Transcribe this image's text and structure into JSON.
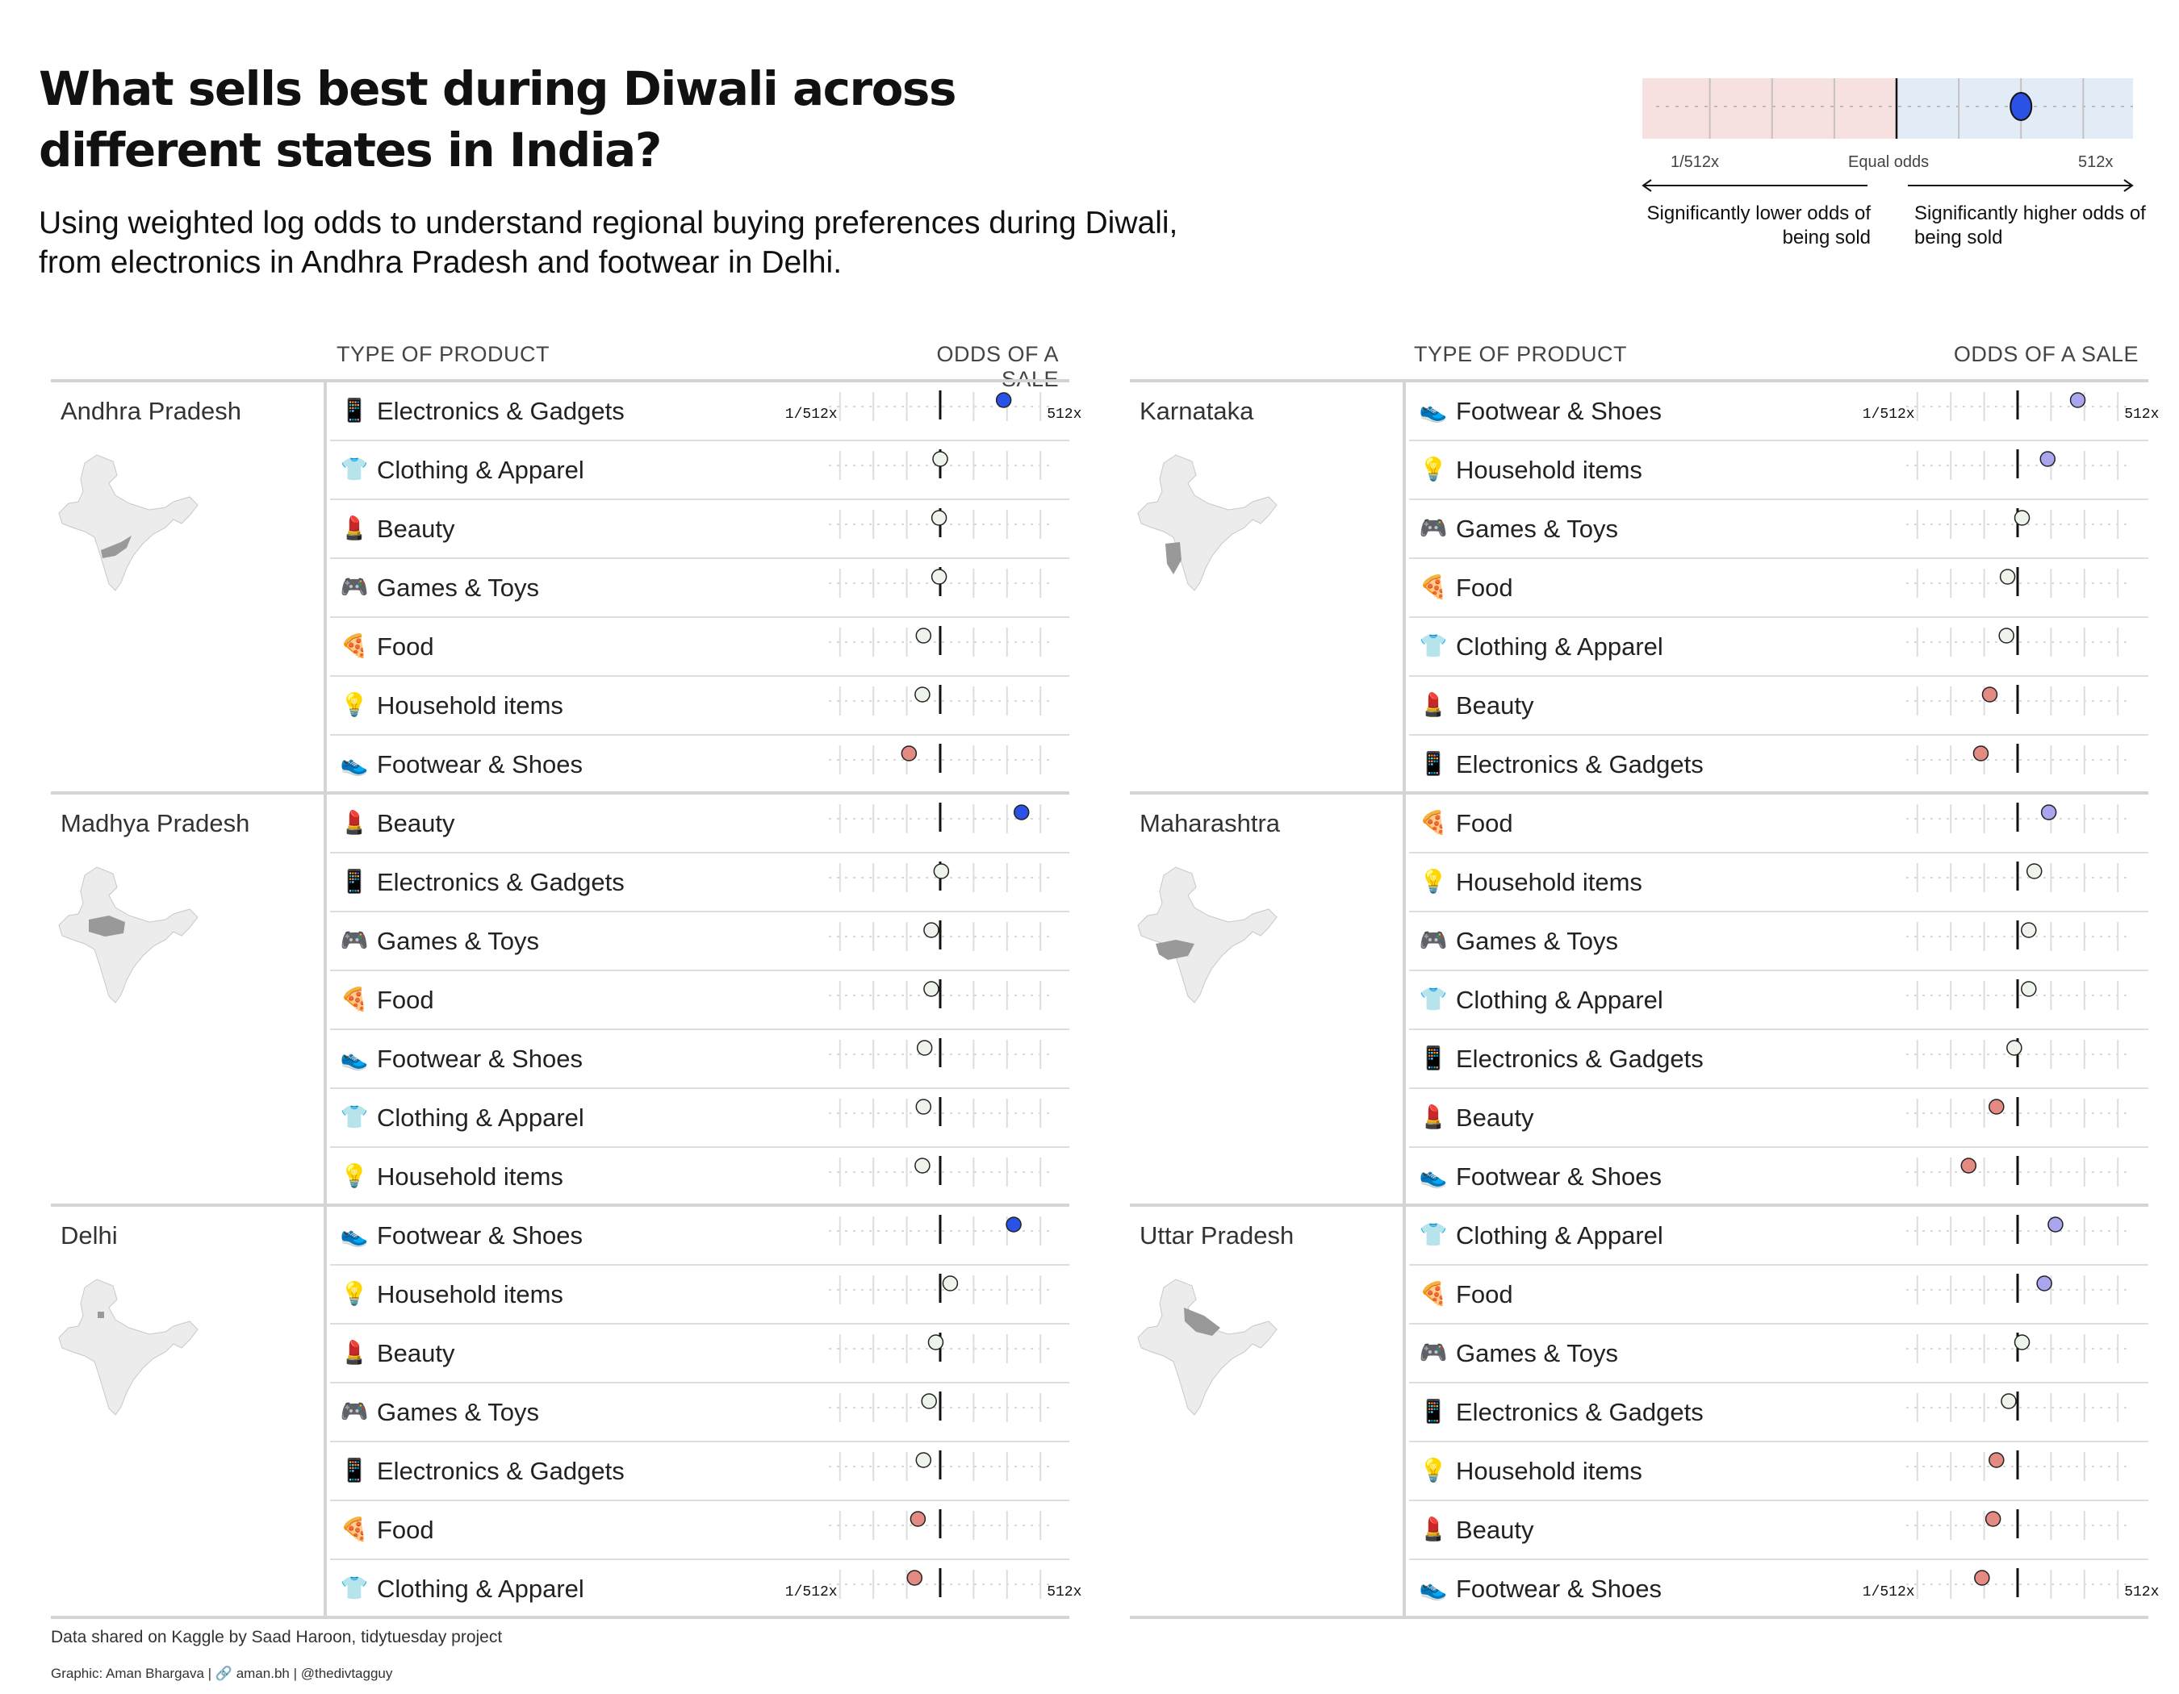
{
  "title": "What sells best during Diwali across different states in India?",
  "subtitle": "Using weighted log odds to understand regional buying preferences during Diwali, from electronics in Andhra Pradesh and footwear in Delhi.",
  "legend": {
    "left_label": "1/512x",
    "center_label": "Equal odds",
    "right_label": "512x",
    "lower_note": "Significantly lower odds of being sold",
    "higher_note": "Significantly higher odds of being sold",
    "example_log2_odds": 6,
    "lower_color": "#f7e1e0",
    "higher_color": "#e1ecf7"
  },
  "headers": {
    "product": "TYPE OF PRODUCT",
    "odds": "ODDS OF A SALE"
  },
  "axis_labels": {
    "min": "1/512x",
    "max": "512x"
  },
  "colors": {
    "high": "#2a52e4",
    "moderate_high": "#a9a6ef",
    "neutral": "#eef4ec",
    "low": "#e38b83"
  },
  "chart_data": {
    "type": "dot",
    "x_scale": "log2 odds ratio",
    "xlim": [
      -9,
      9
    ],
    "ticks": [
      "1/512x",
      "1/64x",
      "1/8x",
      "1",
      "8x",
      "64x",
      "512x"
    ],
    "panels": [
      {
        "states": [
          {
            "name": "Andhra Pradesh",
            "rows": [
              {
                "product": "Electronics & Gadgets",
                "icon": "📱",
                "log2_odds": 5.7,
                "level": "high"
              },
              {
                "product": "Clothing & Apparel",
                "icon": "👕",
                "log2_odds": 0.0,
                "level": "neutral"
              },
              {
                "product": "Beauty",
                "icon": "💄",
                "log2_odds": -0.1,
                "level": "neutral"
              },
              {
                "product": "Games & Toys",
                "icon": "🎮",
                "log2_odds": -0.1,
                "level": "neutral"
              },
              {
                "product": "Food",
                "icon": "🍕",
                "log2_odds": -1.5,
                "level": "neutral"
              },
              {
                "product": "Household items",
                "icon": "💡",
                "log2_odds": -1.6,
                "level": "neutral"
              },
              {
                "product": "Footwear & Shoes",
                "icon": "👟",
                "log2_odds": -2.8,
                "level": "low"
              }
            ]
          },
          {
            "name": "Madhya Pradesh",
            "rows": [
              {
                "product": "Beauty",
                "icon": "💄",
                "log2_odds": 7.3,
                "level": "high"
              },
              {
                "product": "Electronics & Gadgets",
                "icon": "📱",
                "log2_odds": 0.1,
                "level": "neutral"
              },
              {
                "product": "Games & Toys",
                "icon": "🎮",
                "log2_odds": -0.8,
                "level": "neutral"
              },
              {
                "product": "Food",
                "icon": "🍕",
                "log2_odds": -0.8,
                "level": "neutral"
              },
              {
                "product": "Footwear & Shoes",
                "icon": "👟",
                "log2_odds": -1.4,
                "level": "neutral"
              },
              {
                "product": "Clothing & Apparel",
                "icon": "👕",
                "log2_odds": -1.5,
                "level": "neutral"
              },
              {
                "product": "Household items",
                "icon": "💡",
                "log2_odds": -1.6,
                "level": "neutral"
              }
            ]
          },
          {
            "name": "Delhi",
            "rows": [
              {
                "product": "Footwear & Shoes",
                "icon": "👟",
                "log2_odds": 6.6,
                "level": "high"
              },
              {
                "product": "Household items",
                "icon": "💡",
                "log2_odds": 0.9,
                "level": "neutral"
              },
              {
                "product": "Beauty",
                "icon": "💄",
                "log2_odds": -0.4,
                "level": "neutral"
              },
              {
                "product": "Games & Toys",
                "icon": "🎮",
                "log2_odds": -1.0,
                "level": "neutral"
              },
              {
                "product": "Electronics & Gadgets",
                "icon": "📱",
                "log2_odds": -1.5,
                "level": "neutral"
              },
              {
                "product": "Food",
                "icon": "🍕",
                "log2_odds": -2.0,
                "level": "low"
              },
              {
                "product": "Clothing & Apparel",
                "icon": "👕",
                "log2_odds": -2.3,
                "level": "low"
              }
            ]
          }
        ]
      },
      {
        "states": [
          {
            "name": "Karnataka",
            "rows": [
              {
                "product": "Footwear & Shoes",
                "icon": "👟",
                "log2_odds": 5.4,
                "level": "moderate_high"
              },
              {
                "product": "Household items",
                "icon": "💡",
                "log2_odds": 2.7,
                "level": "moderate_high"
              },
              {
                "product": "Games & Toys",
                "icon": "🎮",
                "log2_odds": 0.4,
                "level": "neutral"
              },
              {
                "product": "Food",
                "icon": "🍕",
                "log2_odds": -0.9,
                "level": "neutral"
              },
              {
                "product": "Clothing & Apparel",
                "icon": "👕",
                "log2_odds": -1.0,
                "level": "neutral"
              },
              {
                "product": "Beauty",
                "icon": "💄",
                "log2_odds": -2.5,
                "level": "low"
              },
              {
                "product": "Electronics & Gadgets",
                "icon": "📱",
                "log2_odds": -3.3,
                "level": "low"
              }
            ]
          },
          {
            "name": "Maharashtra",
            "rows": [
              {
                "product": "Food",
                "icon": "🍕",
                "log2_odds": 2.8,
                "level": "moderate_high"
              },
              {
                "product": "Household items",
                "icon": "💡",
                "log2_odds": 1.5,
                "level": "neutral"
              },
              {
                "product": "Games & Toys",
                "icon": "🎮",
                "log2_odds": 1.0,
                "level": "neutral"
              },
              {
                "product": "Clothing & Apparel",
                "icon": "👕",
                "log2_odds": 1.0,
                "level": "neutral"
              },
              {
                "product": "Electronics & Gadgets",
                "icon": "📱",
                "log2_odds": -0.3,
                "level": "neutral"
              },
              {
                "product": "Beauty",
                "icon": "💄",
                "log2_odds": -1.9,
                "level": "low"
              },
              {
                "product": "Footwear & Shoes",
                "icon": "👟",
                "log2_odds": -4.4,
                "level": "low"
              }
            ]
          },
          {
            "name": "Uttar Pradesh",
            "rows": [
              {
                "product": "Clothing & Apparel",
                "icon": "👕",
                "log2_odds": 3.4,
                "level": "moderate_high"
              },
              {
                "product": "Food",
                "icon": "🍕",
                "log2_odds": 2.4,
                "level": "moderate_high"
              },
              {
                "product": "Games & Toys",
                "icon": "🎮",
                "log2_odds": 0.4,
                "level": "neutral"
              },
              {
                "product": "Electronics & Gadgets",
                "icon": "📱",
                "log2_odds": -0.8,
                "level": "neutral"
              },
              {
                "product": "Household items",
                "icon": "💡",
                "log2_odds": -1.9,
                "level": "low"
              },
              {
                "product": "Beauty",
                "icon": "💄",
                "log2_odds": -2.2,
                "level": "low"
              },
              {
                "product": "Footwear & Shoes",
                "icon": "👟",
                "log2_odds": -3.2,
                "level": "low"
              }
            ]
          }
        ]
      }
    ]
  },
  "footer": {
    "source": "Data shared on Kaggle by Saad Haroon, tidytuesday project",
    "credit": "Graphic: Aman Bhargava | 🔗 aman.bh | @thedivtagguy"
  }
}
